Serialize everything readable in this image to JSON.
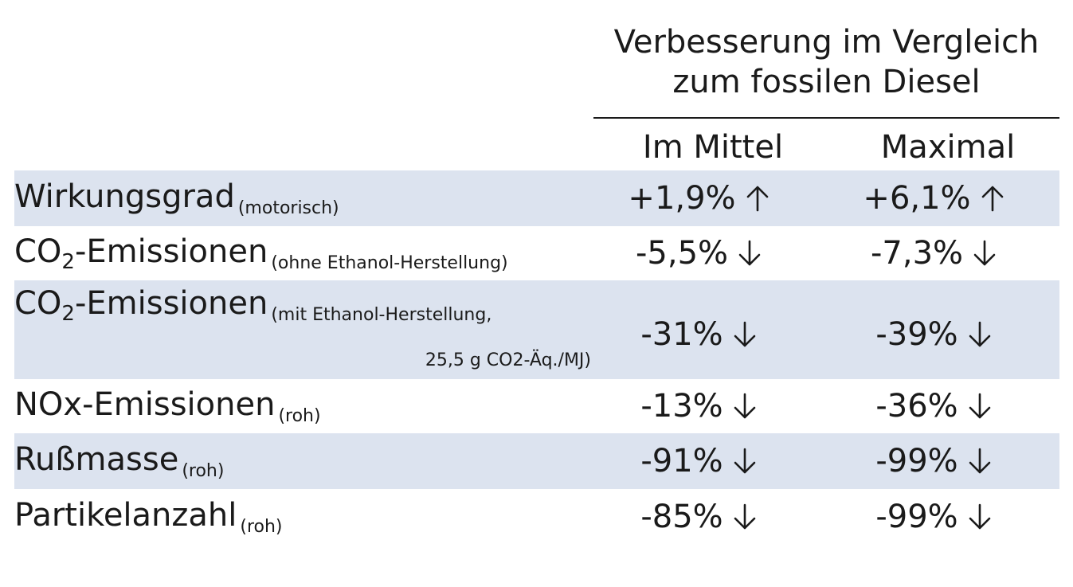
{
  "chart_data": {
    "type": "table",
    "header": {
      "group_title_line1": "Verbesserung im Vergleich",
      "group_title_line2": "zum fossilen Diesel",
      "columns": [
        "Im Mittel",
        "Maximal"
      ]
    },
    "rows": [
      {
        "label": "Wirkungsgrad",
        "label_sub": "",
        "label_after": "",
        "note": "(motorisch)",
        "note_line2": "",
        "mean": "+1,9%",
        "max": "+6,1%",
        "direction": "up",
        "shaded": true
      },
      {
        "label": "CO",
        "label_sub": "2",
        "label_after": "-Emissionen",
        "note": "(ohne Ethanol-Herstellung)",
        "note_line2": "",
        "mean": "-5,5%",
        "max": "-7,3%",
        "direction": "down",
        "shaded": false
      },
      {
        "label": "CO",
        "label_sub": "2",
        "label_after": "-Emissionen",
        "note": "(mit Ethanol-Herstellung,",
        "note_line2": "25,5 g CO2-Äq./MJ)",
        "mean": "-31%",
        "max": "-39%",
        "direction": "down",
        "shaded": true
      },
      {
        "label": "NOx-Emissionen",
        "label_sub": "",
        "label_after": "",
        "note": "(roh)",
        "note_line2": "",
        "mean": "-13%",
        "max": "-36%",
        "direction": "down",
        "shaded": false
      },
      {
        "label": "Rußmasse",
        "label_sub": "",
        "label_after": "",
        "note": "(roh)",
        "note_line2": "",
        "mean": "-91%",
        "max": "-99%",
        "direction": "down",
        "shaded": true
      },
      {
        "label": "Partikelanzahl",
        "label_sub": "",
        "label_after": "",
        "note": "(roh)",
        "note_line2": "",
        "mean": "-85%",
        "max": "-99%",
        "direction": "down",
        "shaded": false
      }
    ],
    "colors": {
      "shaded_row": "#dce3ef",
      "text": "#1a1a1a"
    }
  }
}
